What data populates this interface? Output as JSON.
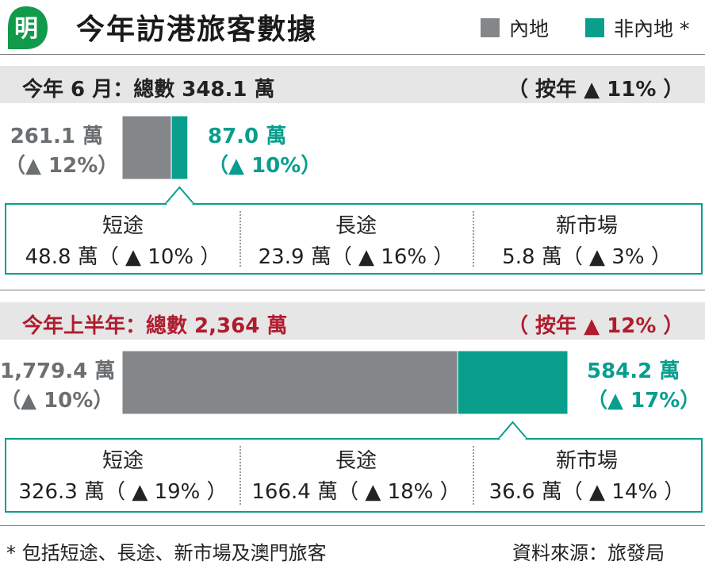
{
  "header": {
    "logo_text": "明",
    "title": "今年訪港旅客數據",
    "legend": [
      {
        "label": "內地",
        "color": "#848789"
      },
      {
        "label": "非內地 *",
        "color": "#0a9e8c"
      }
    ]
  },
  "colors": {
    "mainland": "#848789",
    "non_mainland": "#0a9e8c",
    "accent_red": "#b01c2e",
    "teal_text": "#079e8d"
  },
  "june": {
    "title": "今年 6 月：總數 348.1 萬",
    "yoy": "（ 按年 ▲ 11% ）",
    "mainland_value": "261.1 萬",
    "mainland_change": "（▲ 12%）",
    "non_mainland_value": "87.0 萬",
    "non_mainland_change": "（▲ 10%）",
    "breakdown": [
      {
        "name": "短途",
        "value": "48.8 萬（ ▲ 10% ）"
      },
      {
        "name": "長途",
        "value": "23.9 萬（ ▲ 16% ）"
      },
      {
        "name": "新市場",
        "value": "5.8 萬（ ▲ 3% ）"
      }
    ]
  },
  "half_year": {
    "title": "今年上半年：總數 2,364 萬",
    "yoy": "（ 按年 ▲ 12% ）",
    "mainland_value": "1,779.4 萬",
    "mainland_change": "（▲ 10%）",
    "non_mainland_value": "584.2 萬",
    "non_mainland_change": "（▲ 17%）",
    "breakdown": [
      {
        "name": "短途",
        "value": "326.3 萬（ ▲ 19% ）"
      },
      {
        "name": "長途",
        "value": "166.4 萬（ ▲ 18% ）"
      },
      {
        "name": "新市場",
        "value": "36.6 萬（ ▲ 14% ）"
      }
    ]
  },
  "footer": {
    "note": "* 包括短途、長途、新市場及澳門旅客",
    "source": "資料來源：旅發局"
  },
  "chart_data": [
    {
      "type": "bar",
      "title": "今年 6 月：總數 348.1 萬",
      "categories": [
        "內地",
        "非內地 *"
      ],
      "values": [
        261.1,
        87.0
      ]
    },
    {
      "type": "bar",
      "title": "今年上半年：總數 2,364 萬",
      "categories": [
        "內地",
        "非內地 *"
      ],
      "values": [
        1779.4,
        584.2
      ]
    }
  ]
}
